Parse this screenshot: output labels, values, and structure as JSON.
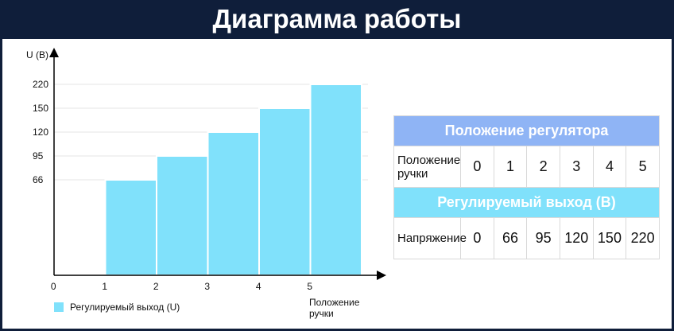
{
  "title": "Диаграмма работы",
  "chart_data": {
    "type": "bar",
    "ylabel": "U (В)",
    "xlabel": "Положение ручки",
    "categories": [
      "0",
      "1",
      "2",
      "3",
      "4",
      "5"
    ],
    "y_ticks": [
      "66",
      "95",
      "120",
      "150",
      "220"
    ],
    "series": [
      {
        "name": "Регулируемый выход (U)",
        "values": [
          0,
          66,
          95,
          120,
          150,
          220
        ]
      }
    ],
    "grid": true,
    "legend_position": "bottom-left",
    "colors": {
      "bar": "#80e1fb"
    }
  },
  "legend": {
    "label": "Регулируемый выход (U)"
  },
  "xaxis_title": "Положение ручки",
  "table": {
    "header1": "Положение регулятора",
    "row1_label": "Положение ручки",
    "row1_values": [
      "0",
      "1",
      "2",
      "3",
      "4",
      "5"
    ],
    "header2": "Регулируемый выход (В)",
    "row2_label": "Напряжение",
    "row2_values": [
      "0",
      "66",
      "95",
      "120",
      "150",
      "220"
    ]
  },
  "colors": {
    "header_bg": "#0f1e3a",
    "table_header_blue": "#8fb4f5",
    "table_header_cyan": "#80e1fb"
  }
}
